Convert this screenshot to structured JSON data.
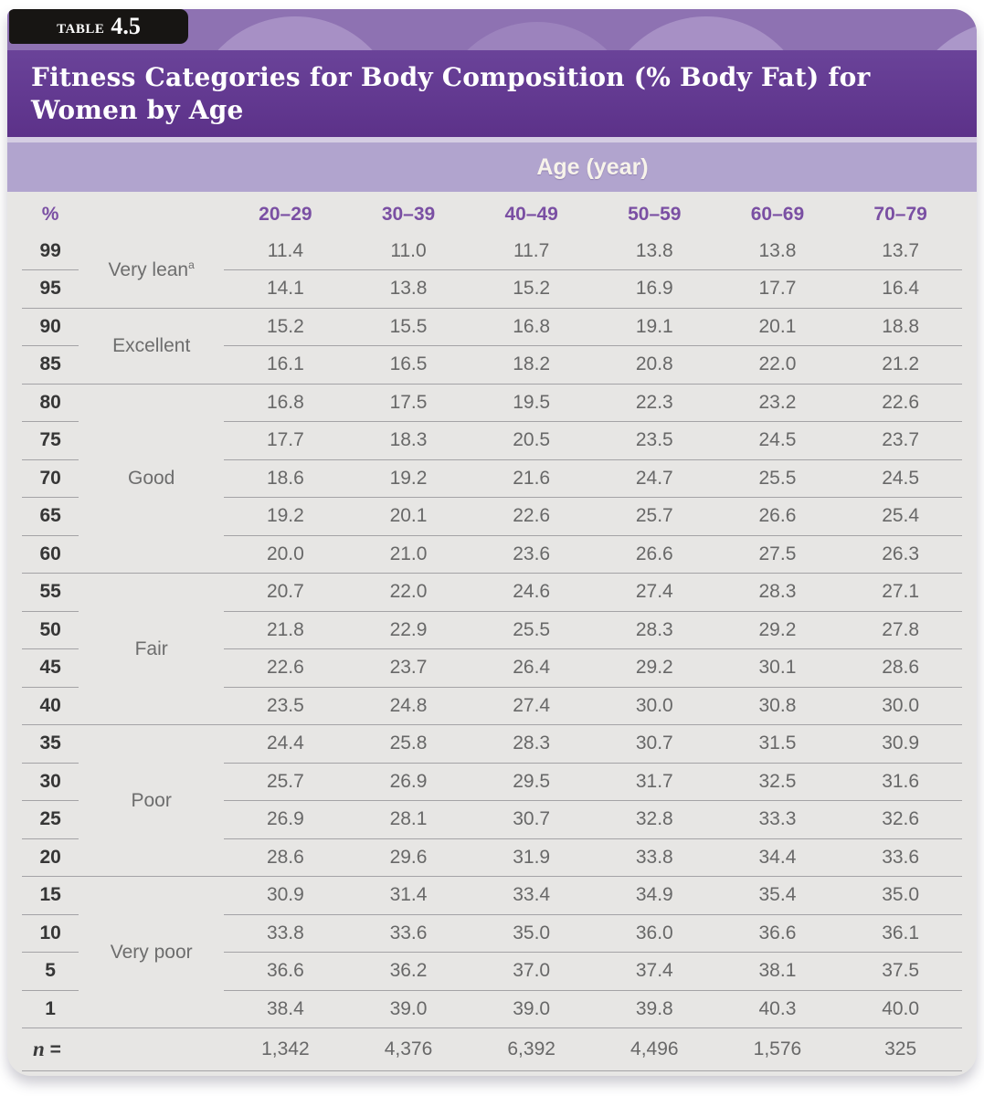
{
  "header": {
    "tag_word": "Table",
    "tag_number": "4.5",
    "title": "Fitness Categories for Body Composition (% Body Fat) for Women by Age",
    "age_label": "Age (year)",
    "percent_label": "%"
  },
  "columns": [
    "20–29",
    "30–39",
    "40–49",
    "50–59",
    "60–69",
    "70–79"
  ],
  "groups": [
    {
      "category": "Very lean",
      "footnote_marker": "a",
      "rows": [
        {
          "percentile": "99",
          "values": [
            "11.4",
            "11.0",
            "11.7",
            "13.8",
            "13.8",
            "13.7"
          ]
        },
        {
          "percentile": "95",
          "values": [
            "14.1",
            "13.8",
            "15.2",
            "16.9",
            "17.7",
            "16.4"
          ]
        }
      ]
    },
    {
      "category": "Excellent",
      "rows": [
        {
          "percentile": "90",
          "values": [
            "15.2",
            "15.5",
            "16.8",
            "19.1",
            "20.1",
            "18.8"
          ]
        },
        {
          "percentile": "85",
          "values": [
            "16.1",
            "16.5",
            "18.2",
            "20.8",
            "22.0",
            "21.2"
          ]
        }
      ]
    },
    {
      "category": "Good",
      "rows": [
        {
          "percentile": "80",
          "values": [
            "16.8",
            "17.5",
            "19.5",
            "22.3",
            "23.2",
            "22.6"
          ]
        },
        {
          "percentile": "75",
          "values": [
            "17.7",
            "18.3",
            "20.5",
            "23.5",
            "24.5",
            "23.7"
          ]
        },
        {
          "percentile": "70",
          "values": [
            "18.6",
            "19.2",
            "21.6",
            "24.7",
            "25.5",
            "24.5"
          ]
        },
        {
          "percentile": "65",
          "values": [
            "19.2",
            "20.1",
            "22.6",
            "25.7",
            "26.6",
            "25.4"
          ]
        },
        {
          "percentile": "60",
          "values": [
            "20.0",
            "21.0",
            "23.6",
            "26.6",
            "27.5",
            "26.3"
          ]
        }
      ]
    },
    {
      "category": "Fair",
      "rows": [
        {
          "percentile": "55",
          "values": [
            "20.7",
            "22.0",
            "24.6",
            "27.4",
            "28.3",
            "27.1"
          ]
        },
        {
          "percentile": "50",
          "values": [
            "21.8",
            "22.9",
            "25.5",
            "28.3",
            "29.2",
            "27.8"
          ]
        },
        {
          "percentile": "45",
          "values": [
            "22.6",
            "23.7",
            "26.4",
            "29.2",
            "30.1",
            "28.6"
          ]
        },
        {
          "percentile": "40",
          "values": [
            "23.5",
            "24.8",
            "27.4",
            "30.0",
            "30.8",
            "30.0"
          ]
        }
      ]
    },
    {
      "category": "Poor",
      "rows": [
        {
          "percentile": "35",
          "values": [
            "24.4",
            "25.8",
            "28.3",
            "30.7",
            "31.5",
            "30.9"
          ]
        },
        {
          "percentile": "30",
          "values": [
            "25.7",
            "26.9",
            "29.5",
            "31.7",
            "32.5",
            "31.6"
          ]
        },
        {
          "percentile": "25",
          "values": [
            "26.9",
            "28.1",
            "30.7",
            "32.8",
            "33.3",
            "32.6"
          ]
        },
        {
          "percentile": "20",
          "values": [
            "28.6",
            "29.6",
            "31.9",
            "33.8",
            "34.4",
            "33.6"
          ]
        }
      ]
    },
    {
      "category": "Very poor",
      "rows": [
        {
          "percentile": "15",
          "values": [
            "30.9",
            "31.4",
            "33.4",
            "34.9",
            "35.4",
            "35.0"
          ]
        },
        {
          "percentile": "10",
          "values": [
            "33.8",
            "33.6",
            "35.0",
            "36.0",
            "36.6",
            "36.1"
          ]
        },
        {
          "percentile": "5",
          "values": [
            "36.6",
            "36.2",
            "37.0",
            "37.4",
            "38.1",
            "37.5"
          ]
        },
        {
          "percentile": "1",
          "values": [
            "38.4",
            "39.0",
            "39.0",
            "39.8",
            "40.3",
            "40.0"
          ]
        }
      ]
    }
  ],
  "n_row": {
    "label_symbol": "n",
    "label_eq": "=",
    "values": [
      "1,342",
      "4,376",
      "6,392",
      "4,496",
      "1,576",
      "325"
    ]
  },
  "colors": {
    "title_band": "#5c3189",
    "decorative_band": "#8e72b2",
    "age_band": "#b1a4ce",
    "header_text": "#7a4fa3",
    "tab_background": "#171513",
    "card_background": "#e7e6e4",
    "rule_line": "#a4a3a6"
  }
}
